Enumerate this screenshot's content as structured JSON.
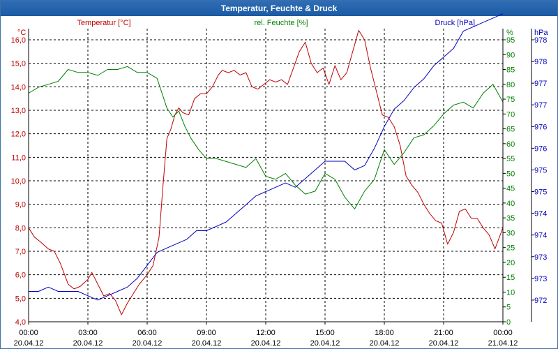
{
  "window": {
    "title": "Temperatur, Feuchte & Druck"
  },
  "chart_data": {
    "type": "line",
    "title": "Temperatur, Feuchte & Druck",
    "xlim": [
      0,
      24
    ],
    "x_ticks": [
      {
        "x": 0,
        "time": "00:00",
        "date": "20.04.12"
      },
      {
        "x": 3,
        "time": "03:00",
        "date": "20.04.12"
      },
      {
        "x": 6,
        "time": "06:00",
        "date": "20.04.12"
      },
      {
        "x": 9,
        "time": "09:00",
        "date": "20.04.12"
      },
      {
        "x": 12,
        "time": "12:00",
        "date": "20.04.12"
      },
      {
        "x": 15,
        "time": "15:00",
        "date": "20.04.12"
      },
      {
        "x": 18,
        "time": "18:00",
        "date": "20.04.12"
      },
      {
        "x": 21,
        "time": "21:00",
        "date": "20.04.12"
      },
      {
        "x": 24,
        "time": "00:00",
        "date": "21.04.12"
      }
    ],
    "axes": {
      "temperature": {
        "title": "Temperatur [°C]",
        "unit": "°C",
        "color": "#c00000",
        "ylim": [
          4.0,
          16.0
        ],
        "ticks": [
          "4,0",
          "5,0",
          "6,0",
          "7,0",
          "8,0",
          "9,0",
          "10,0",
          "11,0",
          "12,0",
          "13,0",
          "14,0",
          "15,0",
          "16,0"
        ]
      },
      "humidity": {
        "title": "rel. Feuchte [%]",
        "unit": "%",
        "color": "#008000",
        "ylim": [
          0,
          95
        ],
        "ticks": [
          "0",
          "5",
          "10",
          "15",
          "20",
          "25",
          "30",
          "35",
          "40",
          "45",
          "50",
          "55",
          "60",
          "65",
          "70",
          "75",
          "80",
          "85",
          "90",
          "95"
        ]
      },
      "pressure": {
        "title": "Druck [hPa]",
        "unit": "hPa",
        "color": "#0000c0",
        "ylim": [
          971.5,
          978.0
        ],
        "ticks": [
          "972",
          "973",
          "973",
          "974",
          "974",
          "975",
          "975",
          "976",
          "976",
          "977",
          "977",
          "978",
          "978"
        ]
      }
    },
    "series": [
      {
        "key": "temperature",
        "name": "Temperatur [°C]",
        "axis": "temperature",
        "color": "#c00000",
        "x": [
          0,
          0.3,
          0.6,
          1.0,
          1.3,
          1.6,
          2.0,
          2.3,
          2.6,
          3.0,
          3.2,
          3.5,
          3.8,
          4.1,
          4.4,
          4.7,
          5.0,
          5.3,
          5.6,
          6.0,
          6.3,
          6.6,
          6.8,
          7.0,
          7.2,
          7.4,
          7.6,
          7.8,
          8.1,
          8.4,
          8.7,
          9.0,
          9.3,
          9.6,
          9.8,
          10.1,
          10.4,
          10.7,
          11.0,
          11.3,
          11.6,
          11.9,
          12.2,
          12.5,
          12.8,
          13.1,
          13.4,
          13.7,
          14.0,
          14.3,
          14.6,
          14.9,
          15.2,
          15.5,
          15.8,
          16.1,
          16.4,
          16.7,
          17.0,
          17.3,
          17.6,
          17.9,
          18.2,
          18.5,
          18.8,
          19.1,
          19.4,
          19.7,
          20.0,
          20.3,
          20.6,
          20.9,
          21.2,
          21.5,
          21.8,
          22.1,
          22.4,
          22.7,
          23.0,
          23.3,
          23.6,
          24.0
        ],
        "values": [
          8.0,
          7.6,
          7.4,
          7.1,
          7.0,
          6.5,
          5.6,
          5.4,
          5.5,
          5.8,
          6.1,
          5.6,
          5.1,
          5.2,
          4.9,
          4.3,
          4.8,
          5.2,
          5.6,
          6.0,
          6.4,
          7.6,
          9.8,
          11.8,
          12.2,
          12.8,
          13.1,
          12.9,
          12.8,
          13.5,
          13.7,
          13.7,
          14.0,
          14.5,
          14.7,
          14.6,
          14.7,
          14.5,
          14.6,
          14.0,
          13.9,
          14.1,
          14.3,
          14.2,
          14.3,
          14.1,
          14.8,
          15.5,
          15.9,
          15.0,
          14.6,
          14.8,
          14.1,
          14.9,
          14.3,
          14.6,
          15.5,
          16.4,
          16.0,
          14.8,
          13.8,
          12.8,
          12.7,
          12.3,
          11.5,
          10.2,
          9.8,
          9.5,
          9.0,
          8.6,
          8.3,
          8.2,
          7.3,
          7.8,
          8.7,
          8.8,
          8.4,
          8.4,
          8.0,
          7.7,
          7.1,
          8.0
        ]
      },
      {
        "key": "humidity",
        "name": "rel. Feuchte [%]",
        "axis": "humidity",
        "color": "#008000",
        "x": [
          0,
          0.5,
          1.0,
          1.5,
          2.0,
          2.5,
          3.0,
          3.5,
          4.0,
          4.5,
          5.0,
          5.5,
          6.0,
          6.5,
          7.0,
          7.3,
          7.6,
          7.9,
          8.2,
          8.6,
          9.0,
          9.5,
          10.0,
          10.5,
          11.0,
          11.5,
          12.0,
          12.5,
          13.0,
          13.5,
          14.0,
          14.5,
          15.0,
          15.5,
          16.0,
          16.5,
          17.0,
          17.5,
          18.0,
          18.5,
          19.0,
          19.5,
          20.0,
          20.5,
          21.0,
          21.5,
          22.0,
          22.5,
          23.0,
          23.5,
          24.0
        ],
        "values": [
          77,
          79,
          80,
          81,
          85,
          84,
          84,
          83,
          85,
          85,
          86,
          84,
          84,
          82,
          72,
          69,
          71,
          66,
          62,
          58,
          55,
          55,
          54,
          53,
          52,
          55,
          49,
          48,
          50,
          46,
          43,
          44,
          50,
          48,
          42,
          38,
          44,
          48,
          58,
          53,
          57,
          62,
          63,
          66,
          70,
          73,
          74,
          72,
          77,
          80,
          74
        ]
      },
      {
        "key": "pressure",
        "name": "Druck [hPa]",
        "axis": "pressure",
        "color": "#0000c0",
        "x": [
          0,
          0.5,
          1.0,
          1.5,
          2.0,
          2.5,
          3.0,
          3.5,
          4.0,
          4.5,
          5.0,
          5.5,
          6.0,
          6.5,
          7.0,
          7.5,
          8.0,
          8.5,
          9.0,
          9.5,
          10.0,
          10.5,
          11.0,
          11.5,
          12.0,
          12.5,
          13.0,
          13.5,
          14.0,
          14.5,
          15.0,
          15.5,
          16.0,
          16.5,
          17.0,
          17.5,
          18.0,
          18.5,
          19.0,
          19.5,
          20.0,
          20.5,
          21.0,
          21.5,
          22.0,
          22.5,
          23.0,
          23.5,
          24.0
        ],
        "values": [
          972.2,
          972.2,
          972.3,
          972.2,
          972.2,
          972.2,
          972.1,
          972.0,
          972.1,
          972.2,
          972.3,
          972.5,
          972.8,
          973.1,
          973.2,
          973.3,
          973.4,
          973.6,
          973.6,
          973.7,
          973.8,
          974.0,
          974.2,
          974.4,
          974.5,
          974.6,
          974.7,
          974.6,
          974.8,
          975.0,
          975.2,
          975.2,
          975.2,
          975.0,
          975.1,
          975.5,
          976.0,
          976.4,
          976.6,
          976.9,
          977.1,
          977.4,
          977.6,
          977.8,
          978.2,
          978.3,
          978.4,
          978.5,
          978.6
        ]
      }
    ],
    "grid": true
  }
}
